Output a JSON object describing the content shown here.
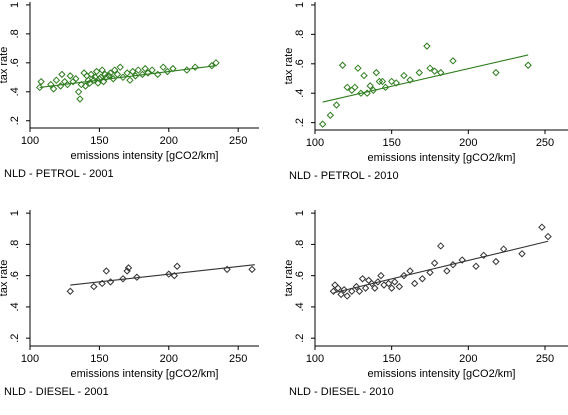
{
  "figure": {
    "background": "#ffffff"
  },
  "chart_data": [
    {
      "type": "scatter",
      "title": "NLD - PETROL - 2001",
      "xlabel": "emissions intensity [gCO2/km]",
      "ylabel": "tax rate",
      "xlim": [
        100,
        265
      ],
      "ylim": [
        0.15,
        1.02
      ],
      "xticks": [
        100,
        150,
        200,
        250
      ],
      "yticks": [
        0.2,
        0.4,
        0.6,
        0.8,
        1
      ],
      "ytick_labels": [
        ".2",
        ".4",
        ".6",
        ".8",
        "1"
      ],
      "grid": false,
      "color": "#2e7d1e",
      "series": [
        {
          "x": [
            107,
            108,
            115,
            117,
            119,
            122,
            123,
            125,
            127,
            129,
            131,
            133,
            135,
            136,
            137,
            139,
            140,
            141,
            142,
            143,
            144,
            146,
            147,
            148,
            149,
            150,
            151,
            152,
            153,
            154,
            155,
            157,
            158,
            160,
            161,
            163,
            165,
            167,
            170,
            172,
            174,
            176,
            178,
            181,
            183,
            185,
            188,
            192,
            196,
            199,
            203,
            213,
            219,
            231,
            234
          ],
          "y": [
            0.43,
            0.47,
            0.45,
            0.42,
            0.48,
            0.44,
            0.52,
            0.47,
            0.45,
            0.51,
            0.47,
            0.49,
            0.4,
            0.35,
            0.45,
            0.53,
            0.44,
            0.51,
            0.48,
            0.46,
            0.52,
            0.48,
            0.5,
            0.54,
            0.46,
            0.49,
            0.5,
            0.55,
            0.47,
            0.52,
            0.5,
            0.51,
            0.53,
            0.49,
            0.55,
            0.52,
            0.57,
            0.5,
            0.53,
            0.48,
            0.54,
            0.51,
            0.55,
            0.52,
            0.56,
            0.53,
            0.55,
            0.52,
            0.57,
            0.54,
            0.56,
            0.55,
            0.57,
            0.58,
            0.6
          ]
        }
      ],
      "fit": {
        "x": [
          107,
          234
        ],
        "y": [
          0.43,
          0.58
        ]
      }
    },
    {
      "type": "scatter",
      "title": "NLD - PETROL - 2010",
      "xlabel": "emissions intensity [gCO2/km]",
      "ylabel": "tax rate",
      "xlim": [
        100,
        265
      ],
      "ylim": [
        0.15,
        1.02
      ],
      "xticks": [
        100,
        150,
        200,
        250
      ],
      "yticks": [
        0.2,
        0.4,
        0.6,
        0.8,
        1
      ],
      "ytick_labels": [
        ".2",
        ".4",
        ".6",
        ".8",
        "1"
      ],
      "grid": false,
      "color": "#2e7d1e",
      "series": [
        {
          "x": [
            105,
            110,
            114,
            118,
            121,
            124,
            126,
            128,
            130,
            132,
            134,
            136,
            138,
            140,
            142,
            144,
            146,
            150,
            153,
            158,
            162,
            168,
            173,
            175,
            178,
            182,
            190,
            218,
            239
          ],
          "y": [
            0.19,
            0.25,
            0.32,
            0.59,
            0.44,
            0.42,
            0.44,
            0.57,
            0.4,
            0.52,
            0.4,
            0.45,
            0.42,
            0.54,
            0.48,
            0.48,
            0.44,
            0.48,
            0.47,
            0.52,
            0.49,
            0.54,
            0.72,
            0.57,
            0.55,
            0.54,
            0.62,
            0.54,
            0.59
          ]
        }
      ],
      "fit": {
        "x": [
          105,
          239
        ],
        "y": [
          0.34,
          0.66
        ]
      }
    },
    {
      "type": "scatter",
      "title": "NLD - DIESEL - 2001",
      "xlabel": "emissions intensity [gCO2/km]",
      "ylabel": "tax rate",
      "xlim": [
        100,
        265
      ],
      "ylim": [
        0.15,
        1.02
      ],
      "xticks": [
        100,
        150,
        200,
        250
      ],
      "yticks": [
        0.2,
        0.4,
        0.6,
        0.8,
        1
      ],
      "ytick_labels": [
        ".2",
        ".4",
        ".6",
        ".8",
        "1"
      ],
      "grid": false,
      "color": "#333333",
      "series": [
        {
          "x": [
            129,
            146,
            152,
            155,
            158,
            167,
            170,
            171,
            177,
            200,
            204,
            206,
            242,
            260
          ],
          "y": [
            0.5,
            0.53,
            0.55,
            0.63,
            0.56,
            0.58,
            0.63,
            0.65,
            0.59,
            0.61,
            0.6,
            0.66,
            0.64,
            0.64
          ]
        }
      ],
      "fit": {
        "x": [
          129,
          262
        ],
        "y": [
          0.54,
          0.67
        ]
      }
    },
    {
      "type": "scatter",
      "title": "NLD - DIESEL - 2010",
      "xlabel": "emissions intensity [gCO2/km]",
      "ylabel": "tax rate",
      "xlim": [
        100,
        265
      ],
      "ylim": [
        0.15,
        1.02
      ],
      "xticks": [
        100,
        150,
        200,
        250
      ],
      "yticks": [
        0.2,
        0.4,
        0.6,
        0.8,
        1
      ],
      "ytick_labels": [
        ".2",
        ".4",
        ".6",
        ".8",
        "1"
      ],
      "grid": false,
      "color": "#333333",
      "series": [
        {
          "x": [
            112,
            113,
            115,
            117,
            119,
            121,
            124,
            127,
            129,
            131,
            133,
            135,
            137,
            139,
            141,
            143,
            145,
            148,
            150,
            152,
            155,
            158,
            162,
            165,
            170,
            175,
            178,
            182,
            186,
            190,
            196,
            205,
            210,
            218,
            223,
            235,
            248,
            252
          ],
          "y": [
            0.5,
            0.54,
            0.52,
            0.48,
            0.51,
            0.47,
            0.5,
            0.53,
            0.5,
            0.58,
            0.52,
            0.57,
            0.55,
            0.52,
            0.56,
            0.6,
            0.54,
            0.55,
            0.52,
            0.56,
            0.53,
            0.6,
            0.63,
            0.55,
            0.58,
            0.62,
            0.68,
            0.79,
            0.63,
            0.67,
            0.7,
            0.66,
            0.73,
            0.69,
            0.77,
            0.74,
            0.91,
            0.85
          ]
        }
      ],
      "fit": {
        "x": [
          112,
          252
        ],
        "y": [
          0.49,
          0.82
        ]
      }
    }
  ]
}
